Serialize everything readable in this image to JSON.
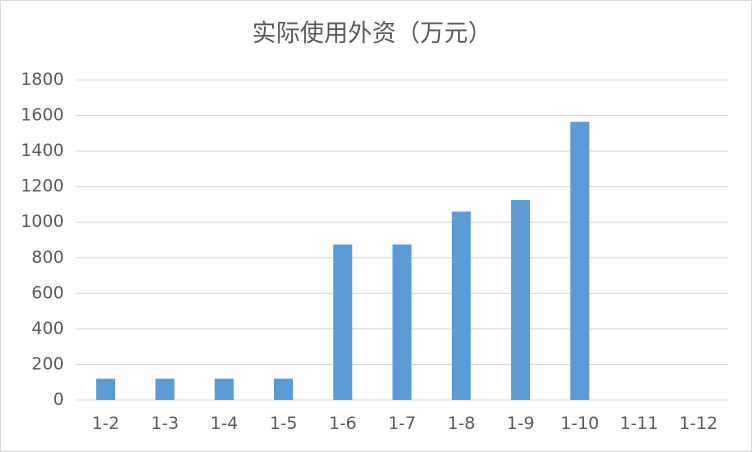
{
  "chart_data": {
    "type": "bar",
    "title": "实际使用外资（万元）",
    "categories": [
      "1-2",
      "1-3",
      "1-4",
      "1-5",
      "1-6",
      "1-7",
      "1-8",
      "1-9",
      "1-10",
      "1-11",
      "1-12"
    ],
    "values": [
      120,
      120,
      120,
      120,
      875,
      875,
      1060,
      1125,
      1565,
      null,
      null
    ],
    "color": "#5b9bd5",
    "ylim": [
      0,
      1800
    ],
    "yticks": [
      0,
      200,
      400,
      600,
      800,
      1000,
      1200,
      1400,
      1600,
      1800
    ],
    "grid": true
  }
}
